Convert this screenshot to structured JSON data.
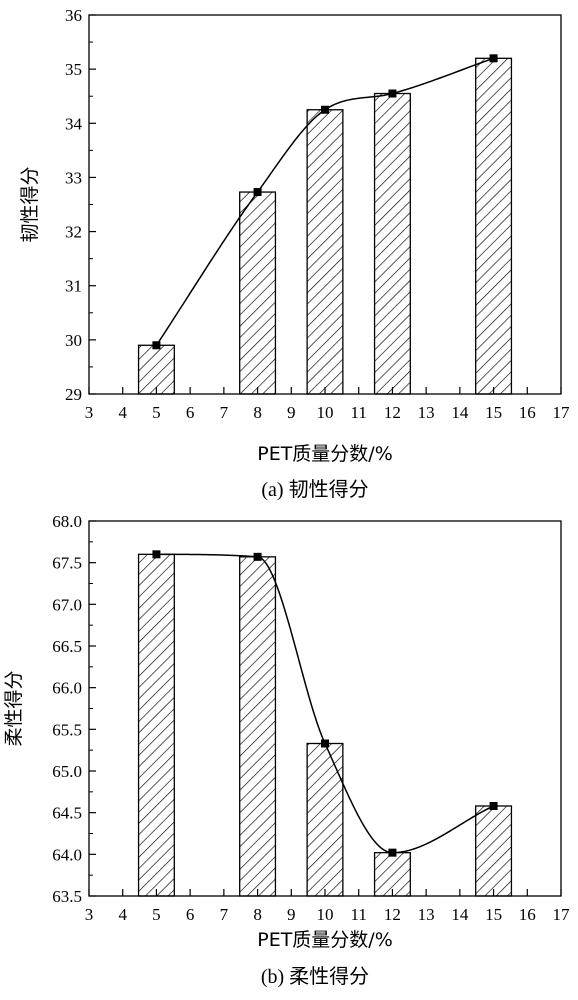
{
  "chart_data": [
    {
      "type": "bar",
      "caption": "(a) 韧性得分",
      "xlabel": "PET质量分数/%",
      "ylabel": "韧性得分",
      "xlim": [
        3,
        17
      ],
      "xticks": [
        3,
        4,
        5,
        6,
        7,
        8,
        9,
        10,
        11,
        12,
        13,
        14,
        15,
        16,
        17
      ],
      "ylim": [
        29,
        36
      ],
      "yticks": [
        29,
        30,
        31,
        32,
        33,
        34,
        35,
        36
      ],
      "ytick_decimals": 0,
      "x": [
        5,
        8,
        10,
        12,
        15
      ],
      "values": [
        29.9,
        32.73,
        34.25,
        34.55,
        35.2
      ],
      "bar_fill": "hatched",
      "line": "smooth curve through bar tops with square markers",
      "grid": false
    },
    {
      "type": "bar",
      "caption": "(b) 柔性得分",
      "xlabel": "PET质量分数/%",
      "ylabel": "柔性得分",
      "xlim": [
        3,
        17
      ],
      "xticks": [
        3,
        4,
        5,
        6,
        7,
        8,
        9,
        10,
        11,
        12,
        13,
        14,
        15,
        16,
        17
      ],
      "ylim": [
        63.5,
        68.0
      ],
      "yticks": [
        63.5,
        64.0,
        64.5,
        65.0,
        65.5,
        66.0,
        66.5,
        67.0,
        67.5,
        68.0
      ],
      "ytick_decimals": 1,
      "x": [
        5,
        8,
        10,
        12,
        15
      ],
      "values": [
        67.6,
        67.57,
        65.33,
        64.02,
        64.58
      ],
      "bar_fill": "hatched",
      "line": "smooth curve through bar tops with square markers",
      "grid": false
    }
  ]
}
